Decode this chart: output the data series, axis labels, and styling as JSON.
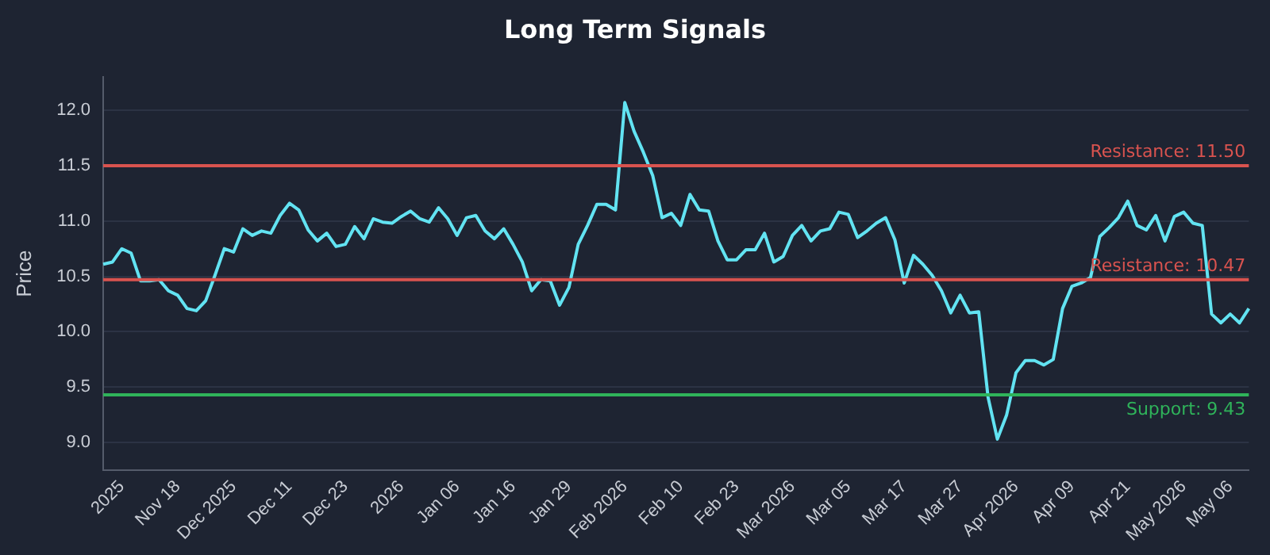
{
  "chart_data": {
    "type": "line",
    "title": "Long Term Signals",
    "ylabel": "Price",
    "categories": [
      null,
      null,
      "2025",
      null,
      null,
      null,
      null,
      null,
      "Nov 18",
      null,
      null,
      null,
      null,
      null,
      "Dec 2025",
      null,
      null,
      null,
      null,
      null,
      "Dec 11",
      null,
      null,
      null,
      null,
      null,
      "Dec 23",
      null,
      null,
      null,
      null,
      null,
      "2026",
      null,
      null,
      null,
      null,
      null,
      "Jan 06",
      null,
      null,
      null,
      null,
      null,
      "Jan 16",
      null,
      null,
      null,
      null,
      null,
      "Jan 29",
      null,
      null,
      null,
      null,
      null,
      "Feb 2026",
      null,
      null,
      null,
      null,
      null,
      "Feb 10",
      null,
      null,
      null,
      null,
      null,
      "Feb 23",
      null,
      null,
      null,
      null,
      null,
      "Mar 2026",
      null,
      null,
      null,
      null,
      null,
      "Mar 05",
      null,
      null,
      null,
      null,
      null,
      "Mar 17",
      null,
      null,
      null,
      null,
      null,
      "Mar 27",
      null,
      null,
      null,
      null,
      null,
      "Apr 2026",
      null,
      null,
      null,
      null,
      null,
      "Apr 09",
      null,
      null,
      null,
      null,
      null,
      "Apr 21",
      null,
      null,
      null,
      null,
      null,
      "May 2026",
      null,
      null,
      null,
      null,
      "May 06",
      null,
      null
    ],
    "series": [
      {
        "color": "#62e3f2",
        "values": [
          10.61,
          10.63,
          10.75,
          10.71,
          10.46,
          10.46,
          10.47,
          10.37,
          10.33,
          10.21,
          10.19,
          10.28,
          10.51,
          10.75,
          10.72,
          10.93,
          10.87,
          10.91,
          10.89,
          11.05,
          11.16,
          11.1,
          10.92,
          10.82,
          10.89,
          10.77,
          10.79,
          10.95,
          10.84,
          11.02,
          10.99,
          10.98,
          11.04,
          11.09,
          11.02,
          10.99,
          11.12,
          11.02,
          10.87,
          11.03,
          11.05,
          10.91,
          10.84,
          10.93,
          10.79,
          10.63,
          10.37,
          10.47,
          10.46,
          10.24,
          10.4,
          10.79,
          10.96,
          11.15,
          11.15,
          11.1,
          12.07,
          11.81,
          11.62,
          11.41,
          11.03,
          11.07,
          10.96,
          11.24,
          11.1,
          11.09,
          10.82,
          10.65,
          10.65,
          10.74,
          10.74,
          10.89,
          10.63,
          10.68,
          10.87,
          10.96,
          10.82,
          10.91,
          10.93,
          11.08,
          11.06,
          10.85,
          10.91,
          10.98,
          11.03,
          10.83,
          10.44,
          10.69,
          10.61,
          10.51,
          10.37,
          10.17,
          10.33,
          10.17,
          10.18,
          9.41,
          9.03,
          9.25,
          9.63,
          9.74,
          9.74,
          9.7,
          9.75,
          10.21,
          10.41,
          10.44,
          10.49,
          10.86,
          10.94,
          11.03,
          11.18,
          10.96,
          10.92,
          11.05,
          10.82,
          11.04,
          11.08,
          10.98,
          10.96,
          10.16,
          10.08,
          10.16,
          10.08,
          10.21
        ]
      }
    ],
    "ylim": [
      8.75,
      12.3
    ],
    "yticks": [
      {
        "value": 9,
        "label": "9.0"
      },
      9.5,
      {
        "value": 10,
        "label": "10.0"
      },
      10.5,
      {
        "value": 11,
        "label": "11.0"
      },
      11.5,
      {
        "value": 12,
        "label": "12.0"
      }
    ],
    "grid": "y",
    "legend": false,
    "marker": "none",
    "line_style": "solid",
    "ref_lines": [
      {
        "axis": "y",
        "value": 11.5,
        "label": "Resistance: 11.50",
        "color": "#d9534f"
      },
      {
        "axis": "y",
        "value": 10.47,
        "label": "Resistance: 10.47",
        "color": "#d9534f"
      },
      {
        "axis": "y",
        "value": 9.43,
        "label": "Support: 9.43",
        "color": "#2fb35a"
      }
    ]
  }
}
